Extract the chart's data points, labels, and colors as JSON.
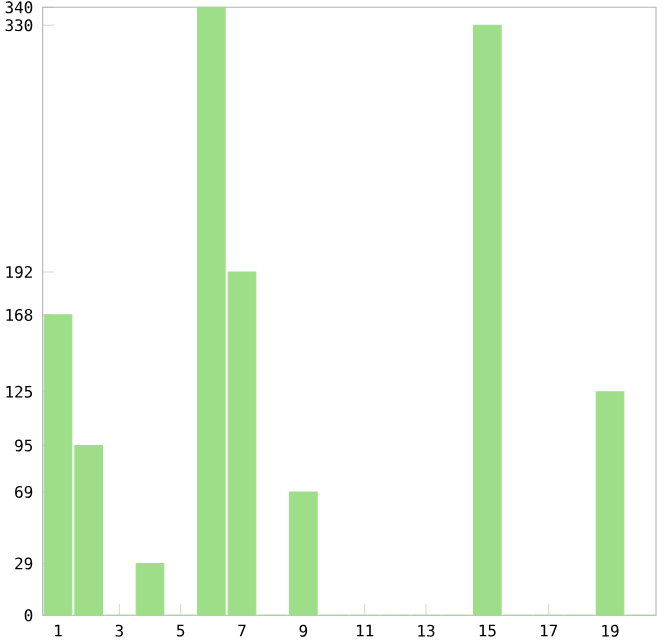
{
  "chart_data": {
    "type": "bar",
    "categories": [
      "1",
      null,
      "3",
      null,
      "5",
      null,
      "7",
      null,
      "9",
      null,
      "11",
      null,
      "13",
      null,
      "15",
      null,
      "17",
      null,
      "19",
      null
    ],
    "values": [
      168,
      95,
      0,
      29,
      0,
      340,
      192,
      0,
      69,
      0,
      0,
      0,
      0,
      0,
      330,
      0,
      0,
      0,
      125,
      0
    ],
    "color": "#9ede88",
    "ylim": [
      0,
      340
    ],
    "yticks": [
      0,
      29,
      69,
      95,
      125,
      168,
      192,
      330,
      340
    ],
    "grid": false
  }
}
